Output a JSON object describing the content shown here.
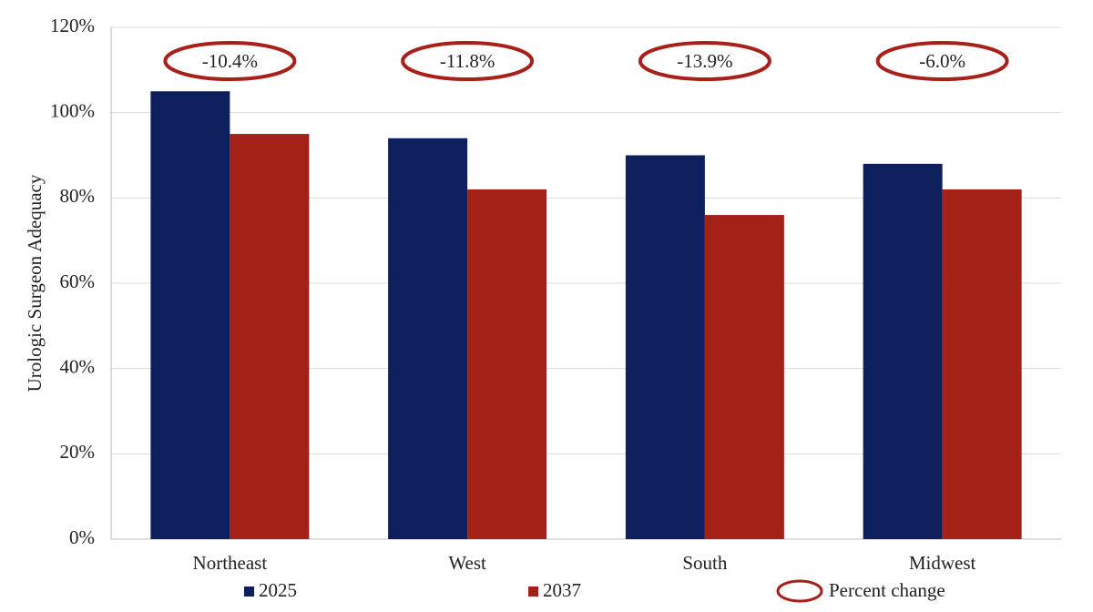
{
  "chart_data": {
    "type": "bar",
    "y_label": "Urologic Surgeon Adequacy",
    "categories": [
      "Northeast",
      "West",
      "South",
      "Midwest"
    ],
    "series": [
      {
        "name": "2025",
        "color": "#0d1f5c",
        "values": [
          105,
          94,
          90,
          88
        ]
      },
      {
        "name": "2037",
        "color": "#a32116",
        "values": [
          95,
          82,
          76,
          82
        ]
      }
    ],
    "percent_change": {
      "name": "Percent change",
      "color": "#a8201a",
      "values": [
        -10.4,
        -11.8,
        -13.9,
        -6.0
      ],
      "value_labels": [
        "-10.4%",
        "-11.8%",
        "-13.9%",
        "-6.0%"
      ]
    },
    "ylim": [
      0,
      120
    ],
    "yticks": [
      {
        "value": 0,
        "label": "0%"
      },
      {
        "value": 20,
        "label": "20%"
      },
      {
        "value": 40,
        "label": "40%"
      },
      {
        "value": 60,
        "label": "60%"
      },
      {
        "value": 80,
        "label": "80%"
      },
      {
        "value": 100,
        "label": "100%"
      },
      {
        "value": 120,
        "label": "120%"
      }
    ],
    "grid": true
  }
}
